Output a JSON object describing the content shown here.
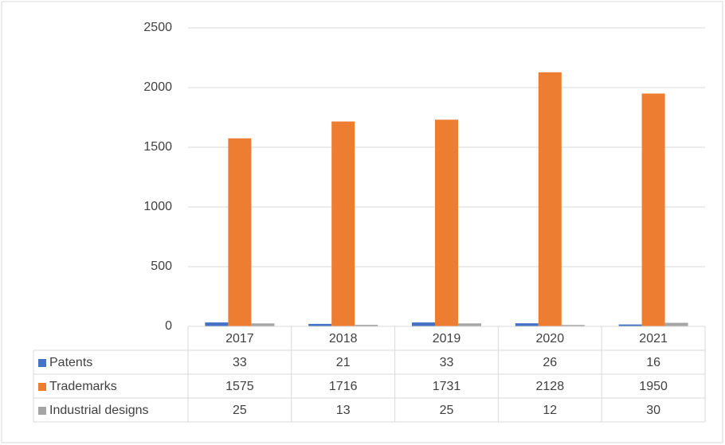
{
  "chart_data": {
    "type": "bar",
    "categories": [
      "2017",
      "2018",
      "2019",
      "2020",
      "2021"
    ],
    "series": [
      {
        "name": "Patents",
        "color": "#4472c4",
        "values": [
          33,
          21,
          33,
          26,
          16
        ]
      },
      {
        "name": "Trademarks",
        "color": "#ed7d31",
        "values": [
          1575,
          1716,
          1731,
          2128,
          1950
        ]
      },
      {
        "name": "Industrial designs",
        "color": "#a5a5a5",
        "values": [
          25,
          13,
          25,
          12,
          30
        ]
      }
    ],
    "ylim": [
      0,
      2500
    ],
    "yticks": [
      0,
      500,
      1000,
      1500,
      2000,
      2500
    ],
    "grid": true,
    "legend": "table"
  }
}
